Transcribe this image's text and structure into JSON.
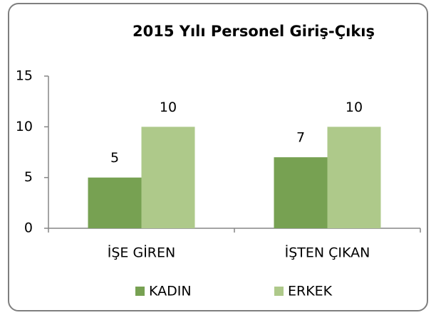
{
  "chart_data": {
    "type": "bar",
    "title": "2015 Yılı Personel Giriş-Çıkış",
    "categories": [
      "İŞE GİREN",
      "İŞTEN ÇIKAN"
    ],
    "series": [
      {
        "name": "KADIN",
        "color": "#77a152",
        "values": [
          5,
          7
        ]
      },
      {
        "name": "ERKEK",
        "color": "#aec98a",
        "values": [
          10,
          10
        ]
      }
    ],
    "ylim": [
      0,
      15
    ],
    "yticks": [
      0,
      5,
      10,
      15
    ],
    "grid": false,
    "legend": "bottom",
    "data_labels": true
  }
}
